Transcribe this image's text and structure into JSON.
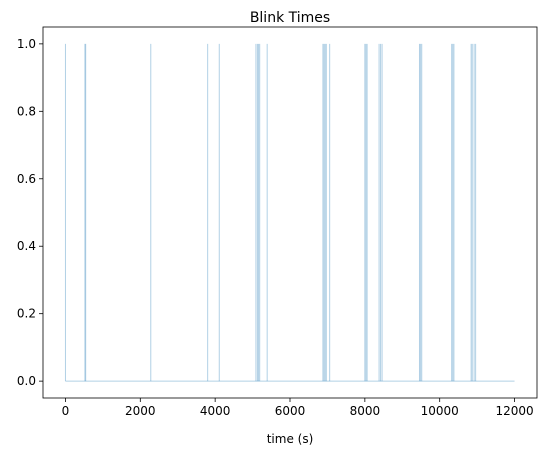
{
  "chart_data": {
    "type": "line",
    "title": "Blink Times",
    "xlabel": "time (s)",
    "ylabel": "",
    "xlim": [
      -600,
      12600
    ],
    "ylim": [
      -0.05,
      1.05
    ],
    "xticks": [
      0,
      2000,
      4000,
      6000,
      8000,
      10000,
      12000
    ],
    "xtick_labels": [
      "0",
      "2000",
      "4000",
      "6000",
      "8000",
      "10000",
      "12000"
    ],
    "yticks": [
      0.0,
      0.2,
      0.4,
      0.6,
      0.8,
      1.0
    ],
    "ytick_labels": [
      "0.0",
      "0.2",
      "0.4",
      "0.6",
      "0.8",
      "1.0"
    ],
    "grid": false,
    "line_color": "#1f77b4",
    "line_alpha": 0.35,
    "baseline": {
      "x_start": 0,
      "x_end": 12000,
      "value": 0
    },
    "blink_times": [
      0,
      520,
      540,
      2280,
      3800,
      4110,
      5090,
      5130,
      5160,
      5190,
      5390,
      6880,
      6910,
      6940,
      6970,
      7060,
      8000,
      8030,
      8060,
      8380,
      8420,
      8460,
      9460,
      9490,
      9520,
      10320,
      10350,
      10380,
      10840,
      10870,
      10920,
      10960
    ]
  }
}
